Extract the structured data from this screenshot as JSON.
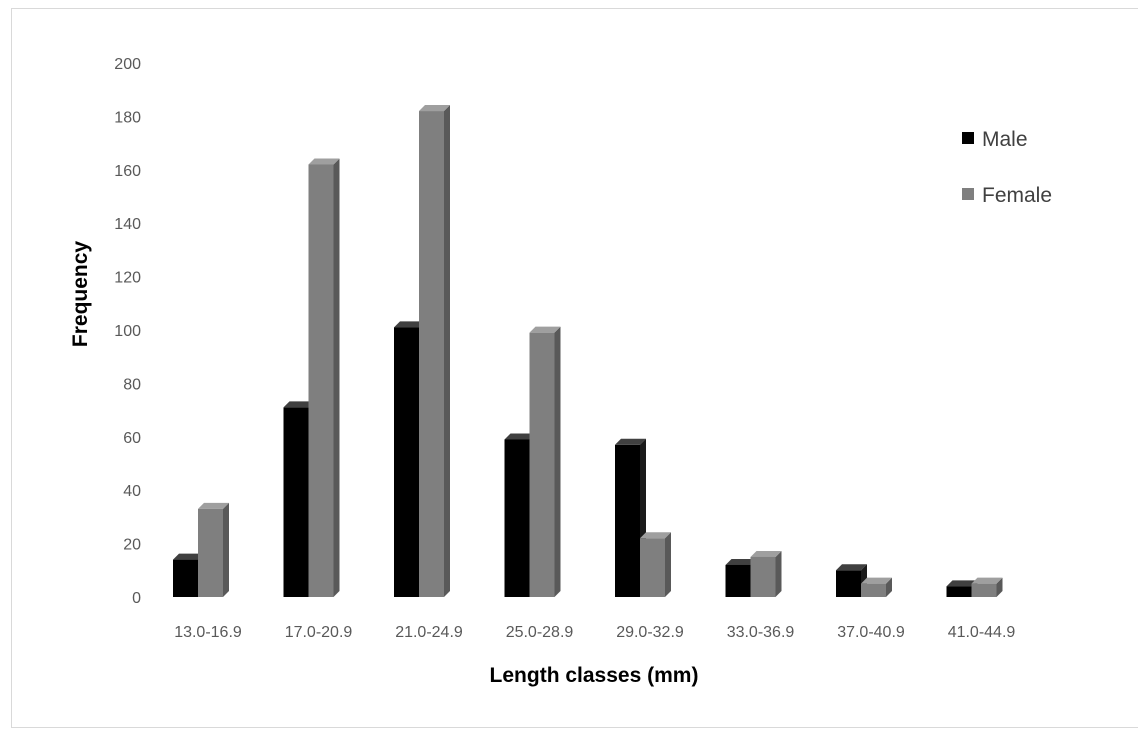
{
  "chart_data": {
    "type": "bar",
    "style": "3d-clustered-column",
    "categories": [
      "13.0-16.9",
      "17.0-20.9",
      "21.0-24.9",
      "25.0-28.9",
      "29.0-32.9",
      "33.0-36.9",
      "37.0-40.9",
      "41.0-44.9"
    ],
    "series": [
      {
        "name": "Male",
        "values": [
          14,
          71,
          101,
          59,
          57,
          12,
          10,
          4
        ],
        "color": "#000000"
      },
      {
        "name": "Female",
        "values": [
          33,
          162,
          182,
          99,
          22,
          15,
          5,
          5
        ],
        "color": "#7f7f7f"
      }
    ],
    "xlabel": "Length classes (mm)",
    "ylabel": "Frequency",
    "ylim": [
      0,
      200
    ],
    "yticks": [
      0,
      20,
      40,
      60,
      80,
      100,
      120,
      140,
      160,
      180,
      200
    ],
    "grid": false,
    "legend": "top-right"
  }
}
